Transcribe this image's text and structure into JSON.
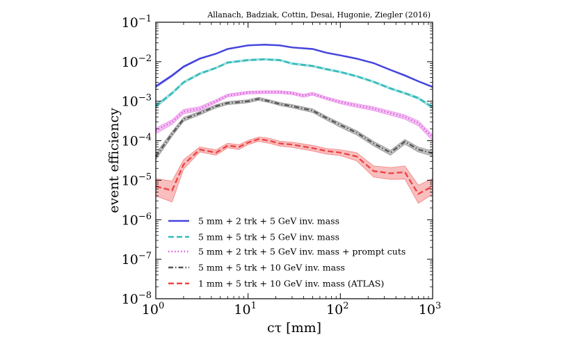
{
  "chart_data": {
    "type": "line",
    "title": "",
    "annotation": "Allanach, Badziak, Cottin, Desai, Hugonie, Ziegler (2016)",
    "xlabel": "cτ [mm]",
    "ylabel": "event efficiency",
    "xscale": "log",
    "yscale": "log",
    "xlim": [
      1,
      1000
    ],
    "ylim": [
      1e-08,
      0.1
    ],
    "x_ticks": [
      {
        "value": 1,
        "base": "10",
        "exp": "0"
      },
      {
        "value": 10,
        "base": "10",
        "exp": "1"
      },
      {
        "value": 100,
        "base": "10",
        "exp": "2"
      },
      {
        "value": 1000,
        "base": "10",
        "exp": "3"
      }
    ],
    "y_ticks": [
      {
        "value": 0.1,
        "base": "10",
        "exp": "−1"
      },
      {
        "value": 0.01,
        "base": "10",
        "exp": "−2"
      },
      {
        "value": 0.001,
        "base": "10",
        "exp": "−3"
      },
      {
        "value": 0.0001,
        "base": "10",
        "exp": "−4"
      },
      {
        "value": 1e-05,
        "base": "10",
        "exp": "−5"
      },
      {
        "value": 1e-06,
        "base": "10",
        "exp": "−6"
      },
      {
        "value": 1e-07,
        "base": "10",
        "exp": "−7"
      },
      {
        "value": 1e-08,
        "base": "10",
        "exp": "−8"
      }
    ],
    "legend_position": "lower-left",
    "series": [
      {
        "name": "5 mm + 2 trk + 5 GeV inv. mass",
        "color": "#4444dd",
        "style": "solid",
        "x": [
          1,
          1.5,
          2,
          3,
          4.5,
          6,
          10,
          15,
          22,
          30,
          50,
          70,
          100,
          150,
          230,
          350,
          500,
          700,
          1000
        ],
        "y": [
          0.0024,
          0.0045,
          0.0075,
          0.012,
          0.016,
          0.021,
          0.026,
          0.027,
          0.026,
          0.023,
          0.021,
          0.017,
          0.0145,
          0.012,
          0.0092,
          0.0062,
          0.0045,
          0.0032,
          0.0023
        ],
        "lower": [
          0.0022,
          0.0042,
          0.0071,
          0.0115,
          0.0155,
          0.0202,
          0.0252,
          0.0262,
          0.0252,
          0.0224,
          0.0204,
          0.0165,
          0.0141,
          0.0116,
          0.0089,
          0.006,
          0.0043,
          0.0031,
          0.0022
        ],
        "upper": [
          0.0025,
          0.0047,
          0.0079,
          0.0125,
          0.0165,
          0.0218,
          0.0268,
          0.0278,
          0.0268,
          0.0236,
          0.0216,
          0.0175,
          0.0149,
          0.0124,
          0.0095,
          0.0064,
          0.0047,
          0.0033,
          0.0024
        ]
      },
      {
        "name": "5 mm + 5 trk + 5 GeV inv. mass",
        "color": "#33bbbb",
        "style": "dashed",
        "x": [
          1,
          1.5,
          2,
          3,
          4.5,
          6,
          10,
          15,
          22,
          30,
          50,
          70,
          100,
          150,
          230,
          350,
          500,
          700,
          1000
        ],
        "y": [
          0.00075,
          0.0016,
          0.003,
          0.005,
          0.007,
          0.0095,
          0.011,
          0.0115,
          0.011,
          0.009,
          0.0078,
          0.0065,
          0.0055,
          0.0043,
          0.0031,
          0.0021,
          0.0016,
          0.0012,
          0.0007
        ],
        "lower": [
          0.00068,
          0.00148,
          0.00282,
          0.00472,
          0.00665,
          0.00902,
          0.01045,
          0.011,
          0.01045,
          0.00855,
          0.0074,
          0.00615,
          0.00522,
          0.00408,
          0.00294,
          0.00198,
          0.00151,
          0.00112,
          0.00065
        ],
        "upper": [
          0.00082,
          0.00172,
          0.00318,
          0.00528,
          0.00735,
          0.00998,
          0.01155,
          0.0121,
          0.01155,
          0.00945,
          0.0082,
          0.00685,
          0.00578,
          0.00452,
          0.00326,
          0.00222,
          0.00169,
          0.00128,
          0.00075
        ]
      },
      {
        "name": "5 mm + 2 trk + 5 GeV inv. mass + prompt cuts",
        "color": "#dd55dd",
        "style": "dotted",
        "x": [
          1,
          1.5,
          2,
          3,
          4.5,
          6,
          10,
          15,
          22,
          30,
          40,
          50,
          70,
          100,
          150,
          230,
          350,
          500,
          700,
          1000
        ],
        "y": [
          0.00018,
          0.0003,
          0.00055,
          0.00065,
          0.001,
          0.0014,
          0.00165,
          0.0017,
          0.0017,
          0.0016,
          0.00138,
          0.00155,
          0.0012,
          0.00095,
          0.00078,
          0.00065,
          0.0005,
          0.0004,
          0.00028,
          0.00012
        ],
        "lower": [
          0.00015,
          0.00026,
          0.00048,
          0.00058,
          0.00091,
          0.00128,
          0.00152,
          0.00157,
          0.00157,
          0.00147,
          0.00126,
          0.00142,
          0.0011,
          0.00086,
          0.0007,
          0.00058,
          0.00044,
          0.00035,
          0.00024,
          0.0001
        ],
        "upper": [
          0.00021,
          0.00034,
          0.00062,
          0.00073,
          0.0011,
          0.00152,
          0.00179,
          0.00184,
          0.00184,
          0.00173,
          0.0015,
          0.00168,
          0.0013,
          0.00104,
          0.00086,
          0.00072,
          0.00056,
          0.00045,
          0.00032,
          0.00014
        ]
      },
      {
        "name": "5 mm + 5 trk + 10 GeV inv. mass",
        "color": "#555555",
        "style": "dashdot",
        "x": [
          1,
          1.5,
          2,
          3,
          4.5,
          6,
          8,
          10,
          13,
          17,
          22,
          30,
          50,
          70,
          100,
          150,
          230,
          350,
          500,
          700,
          1000
        ],
        "y": [
          4e-05,
          0.00015,
          0.00035,
          0.0005,
          0.00075,
          0.0009,
          0.00095,
          0.001,
          0.00115,
          0.001,
          0.00085,
          0.00075,
          0.00058,
          0.00038,
          0.00025,
          0.00016,
          8.5e-05,
          5e-05,
          9.5e-05,
          6e-05,
          4.8e-05
        ],
        "lower": [
          3.3e-05,
          0.00013,
          0.00031,
          0.00045,
          0.00068,
          0.00082,
          0.00087,
          0.00092,
          0.00105,
          0.00092,
          0.00078,
          0.00068,
          0.00052,
          0.00034,
          0.00022,
          0.00014,
          7.4e-05,
          4.3e-05,
          8.2e-05,
          5.2e-05,
          4.1e-05
        ],
        "upper": [
          4.8e-05,
          0.00017,
          0.00039,
          0.00055,
          0.00082,
          0.00098,
          0.00104,
          0.00109,
          0.00126,
          0.00109,
          0.00093,
          0.00082,
          0.00064,
          0.00042,
          0.00028,
          0.00018,
          9.6e-05,
          5.7e-05,
          0.000108,
          6.9e-05,
          5.5e-05
        ]
      },
      {
        "name": "1 mm + 5 trk + 10 GeV inv. mass (ATLAS)",
        "color": "#ee4444",
        "style": "dashed",
        "x": [
          1,
          1.5,
          2,
          3,
          4.5,
          6,
          8,
          10,
          13,
          17,
          22,
          30,
          50,
          70,
          100,
          150,
          230,
          350,
          500,
          700,
          1000
        ],
        "y": [
          7e-06,
          5.5e-06,
          2.5e-05,
          6e-05,
          5e-05,
          7.5e-05,
          7e-05,
          9e-05,
          0.00011,
          0.0001,
          8.5e-05,
          8e-05,
          6.5e-05,
          5.5e-05,
          5e-05,
          4e-05,
          1.7e-05,
          1.5e-05,
          1.6e-05,
          4.5e-06,
          7e-06
        ],
        "lower": [
          4e-06,
          2.8e-06,
          1.9e-05,
          5.2e-05,
          4.3e-05,
          6.6e-05,
          6e-05,
          8e-05,
          9.6e-05,
          8.6e-05,
          7.3e-05,
          6.8e-05,
          5.5e-05,
          4.6e-05,
          4.2e-05,
          3.1e-05,
          1.2e-05,
          1.05e-05,
          1.07e-05,
          2.6e-06,
          4.4e-06
        ],
        "upper": [
          1.1e-05,
          9.5e-06,
          3.3e-05,
          7e-05,
          5.9e-05,
          8.6e-05,
          8e-05,
          0.000102,
          0.000125,
          0.000115,
          9.8e-05,
          9.2e-05,
          7.6e-05,
          6.4e-05,
          5.9e-05,
          5e-05,
          2.3e-05,
          2.1e-05,
          2.3e-05,
          7.5e-06,
          1.1e-05
        ]
      }
    ]
  }
}
